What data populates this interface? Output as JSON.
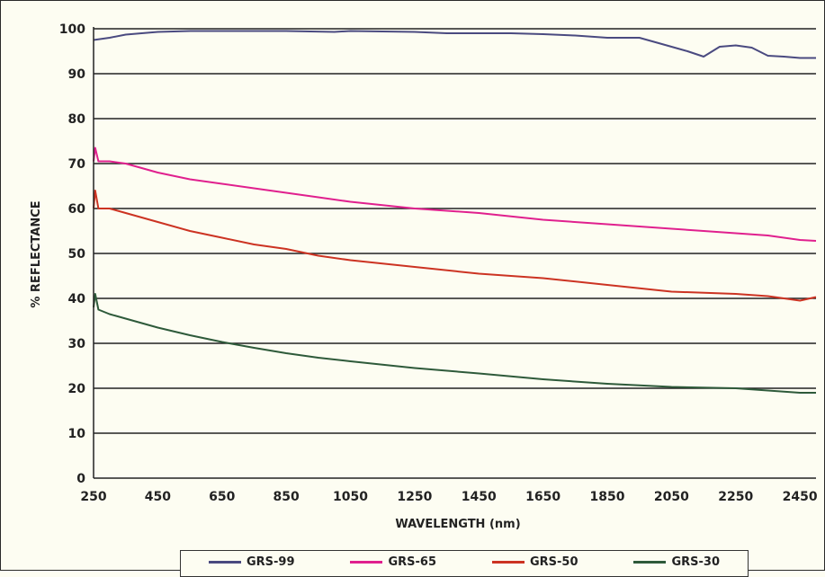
{
  "chart_data": {
    "type": "line",
    "xlabel": "WAVELENGTH (nm)",
    "ylabel": "% REFLECTANCE",
    "xlim": [
      250,
      2500
    ],
    "ylim": [
      0,
      100
    ],
    "x_ticks": [
      250,
      450,
      650,
      850,
      1050,
      1250,
      1450,
      1650,
      1850,
      2050,
      2250,
      2450
    ],
    "y_ticks": [
      0,
      10,
      20,
      30,
      40,
      50,
      60,
      70,
      80,
      90,
      100
    ],
    "grid": "horizontal",
    "legend_position": "bottom",
    "series": [
      {
        "name": "GRS-99",
        "color": "#4a4a80",
        "points": [
          [
            250,
            97.5
          ],
          [
            300,
            98
          ],
          [
            350,
            98.7
          ],
          [
            400,
            99
          ],
          [
            450,
            99.3
          ],
          [
            550,
            99.5
          ],
          [
            650,
            99.5
          ],
          [
            850,
            99.5
          ],
          [
            1000,
            99.3
          ],
          [
            1050,
            99.5
          ],
          [
            1250,
            99.3
          ],
          [
            1350,
            99
          ],
          [
            1450,
            99
          ],
          [
            1550,
            99
          ],
          [
            1650,
            98.8
          ],
          [
            1750,
            98.5
          ],
          [
            1850,
            98
          ],
          [
            1900,
            98
          ],
          [
            1950,
            98
          ],
          [
            2000,
            97
          ],
          [
            2050,
            96
          ],
          [
            2100,
            95
          ],
          [
            2150,
            93.8
          ],
          [
            2200,
            96
          ],
          [
            2250,
            96.3
          ],
          [
            2300,
            95.8
          ],
          [
            2350,
            94
          ],
          [
            2400,
            93.8
          ],
          [
            2450,
            93.5
          ],
          [
            2500,
            93.5
          ]
        ]
      },
      {
        "name": "GRS-65",
        "color": "#e0208e",
        "points": [
          [
            250,
            70.5
          ],
          [
            255,
            73.5
          ],
          [
            265,
            70.5
          ],
          [
            300,
            70.5
          ],
          [
            350,
            70
          ],
          [
            450,
            68
          ],
          [
            550,
            66.5
          ],
          [
            650,
            65.5
          ],
          [
            750,
            64.5
          ],
          [
            850,
            63.5
          ],
          [
            950,
            62.5
          ],
          [
            1050,
            61.5
          ],
          [
            1250,
            60
          ],
          [
            1450,
            59
          ],
          [
            1650,
            57.5
          ],
          [
            1850,
            56.5
          ],
          [
            2050,
            55.5
          ],
          [
            2150,
            55
          ],
          [
            2250,
            54.5
          ],
          [
            2350,
            54
          ],
          [
            2450,
            53
          ],
          [
            2500,
            52.8
          ]
        ]
      },
      {
        "name": "GRS-50",
        "color": "#cc3322",
        "points": [
          [
            250,
            60
          ],
          [
            255,
            64
          ],
          [
            265,
            60
          ],
          [
            300,
            60
          ],
          [
            350,
            59
          ],
          [
            450,
            57
          ],
          [
            550,
            55
          ],
          [
            650,
            53.5
          ],
          [
            750,
            52
          ],
          [
            850,
            51
          ],
          [
            950,
            49.5
          ],
          [
            1050,
            48.5
          ],
          [
            1250,
            47
          ],
          [
            1450,
            45.5
          ],
          [
            1650,
            44.5
          ],
          [
            1850,
            43
          ],
          [
            2050,
            41.5
          ],
          [
            2250,
            41
          ],
          [
            2350,
            40.5
          ],
          [
            2450,
            39.5
          ],
          [
            2500,
            40.3
          ]
        ]
      },
      {
        "name": "GRS-30",
        "color": "#2e5a3a",
        "points": [
          [
            250,
            38
          ],
          [
            255,
            41
          ],
          [
            265,
            37.5
          ],
          [
            300,
            36.5
          ],
          [
            350,
            35.5
          ],
          [
            450,
            33.5
          ],
          [
            550,
            31.8
          ],
          [
            650,
            30.3
          ],
          [
            750,
            29
          ],
          [
            850,
            27.8
          ],
          [
            950,
            26.8
          ],
          [
            1050,
            26
          ],
          [
            1250,
            24.5
          ],
          [
            1450,
            23.3
          ],
          [
            1650,
            22
          ],
          [
            1850,
            21
          ],
          [
            2050,
            20.3
          ],
          [
            2250,
            20
          ],
          [
            2350,
            19.5
          ],
          [
            2450,
            19
          ],
          [
            2500,
            19
          ]
        ]
      }
    ]
  }
}
